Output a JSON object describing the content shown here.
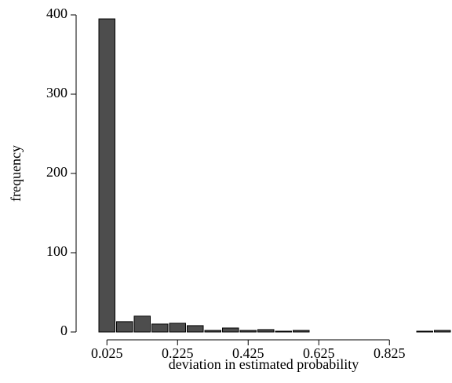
{
  "chart_data": {
    "type": "histogram",
    "x_label": "deviation in estimated probability",
    "y_label": "frequency",
    "bins": [
      0,
      0.05,
      0.1,
      0.15,
      0.2,
      0.25,
      0.3,
      0.35,
      0.4,
      0.45,
      0.5,
      0.55,
      0.6,
      0.65,
      0.7,
      0.75,
      0.8,
      0.85,
      0.9,
      0.95,
      1.0
    ],
    "values": [
      395,
      13,
      20,
      10,
      11,
      8,
      2,
      5,
      2,
      3,
      1,
      2,
      0,
      0,
      0,
      0,
      0,
      0,
      1,
      2
    ],
    "color": "#4d4d4d",
    "xlim": [
      0,
      1
    ],
    "xticks": [
      0.025,
      0.225,
      0.425,
      0.625,
      0.825
    ],
    "ylim": [
      0,
      400
    ],
    "yticks": [
      0,
      100,
      200,
      300,
      400
    ]
  }
}
